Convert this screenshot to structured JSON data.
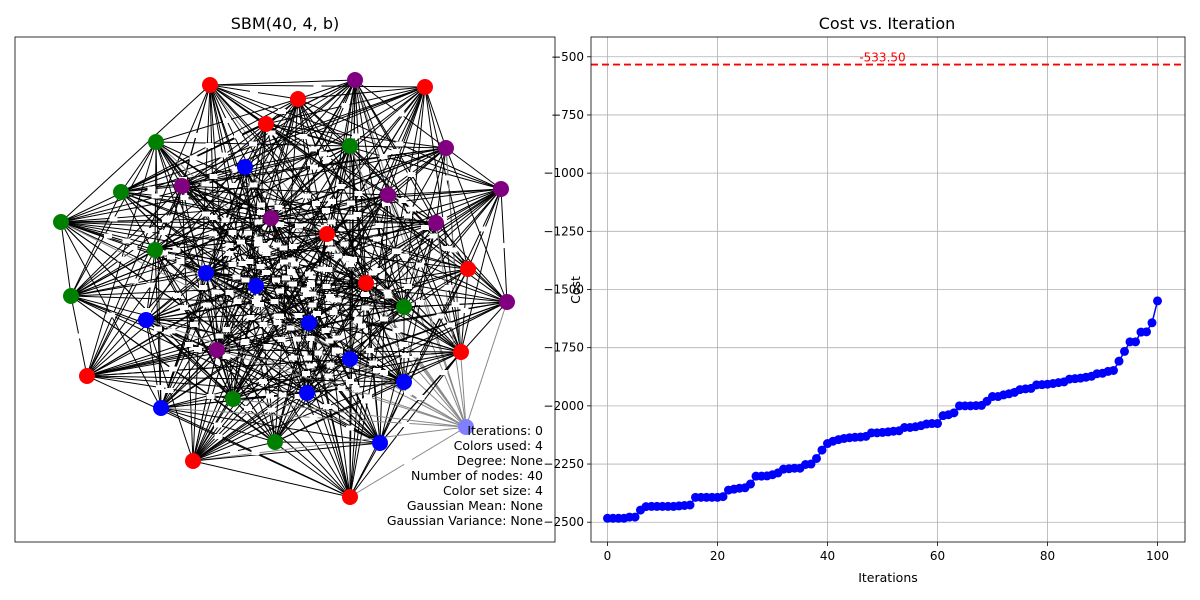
{
  "chart_data": [
    {
      "type": "network",
      "title": "SBM(40, 4, b)",
      "node_count": 40,
      "colors": {
        "red": "#ff0000",
        "green": "#008000",
        "blue": "#0000ff",
        "purple": "#800080",
        "light_blue": "#8080ff"
      },
      "info_lines": [
        "Iterations: 0",
        "Colors used: 4",
        "Degree: None",
        "Number of nodes: 40",
        "Color set size: 4",
        "Gaussian Mean: None",
        "Gaussian Variance: None"
      ]
    },
    {
      "type": "line",
      "title": "Cost vs. Iteration",
      "xlabel": "Iterations",
      "ylabel": "Cost",
      "xlim": [
        -3,
        105
      ],
      "ylim": [
        -2585,
        -415
      ],
      "x_ticks": [
        0,
        20,
        40,
        60,
        80,
        100
      ],
      "y_ticks": [
        -500,
        -750,
        -1000,
        -1250,
        -1500,
        -1750,
        -2000,
        -2250,
        -2500
      ],
      "y_tick_labels": [
        "−500",
        "−750",
        "−1000",
        "−1250",
        "−1500",
        "−1750",
        "−2000",
        "−2250",
        "−2500"
      ],
      "grid": true,
      "line_color": "#0000ff",
      "reference_line": {
        "y": -533.5,
        "label": "-533.50",
        "color": "#ff0000"
      },
      "series": [
        {
          "x": [
            0,
            1,
            2,
            3,
            4,
            5,
            6,
            7,
            8,
            9,
            10,
            11,
            12,
            13,
            14,
            15,
            16,
            17,
            18,
            19,
            20,
            21,
            22,
            23,
            24,
            25,
            26,
            27,
            28,
            29,
            30,
            31,
            32,
            33,
            34,
            35,
            36,
            37,
            38,
            39,
            40,
            41,
            42,
            43,
            44,
            45,
            46,
            47,
            48,
            49,
            50,
            51,
            52,
            53,
            54,
            55,
            56,
            57,
            58,
            59,
            60,
            61,
            62,
            63,
            64,
            65,
            66,
            67,
            68,
            69,
            70,
            71,
            72,
            73,
            74,
            75,
            76,
            77,
            78,
            79,
            80,
            81,
            82,
            83,
            84,
            85,
            86,
            87,
            88,
            89,
            90,
            91,
            92,
            93,
            94,
            95,
            96,
            97,
            98,
            99,
            100
          ],
          "y": [
            -2483,
            -2483,
            -2483,
            -2483,
            -2478,
            -2478,
            -2448,
            -2433,
            -2432,
            -2432,
            -2432,
            -2432,
            -2432,
            -2430,
            -2428,
            -2426,
            -2393,
            -2393,
            -2393,
            -2393,
            -2393,
            -2390,
            -2362,
            -2358,
            -2354,
            -2352,
            -2336,
            -2302,
            -2302,
            -2301,
            -2296,
            -2288,
            -2272,
            -2270,
            -2268,
            -2268,
            -2252,
            -2250,
            -2226,
            -2190,
            -2162,
            -2152,
            -2145,
            -2140,
            -2137,
            -2135,
            -2134,
            -2131,
            -2116,
            -2116,
            -2114,
            -2112,
            -2109,
            -2107,
            -2093,
            -2093,
            -2090,
            -2085,
            -2078,
            -2076,
            -2076,
            -2042,
            -2038,
            -2030,
            -2000,
            -2000,
            -2000,
            -1999,
            -1998,
            -1980,
            -1960,
            -1960,
            -1953,
            -1948,
            -1942,
            -1930,
            -1927,
            -1925,
            -1910,
            -1909,
            -1907,
            -1904,
            -1900,
            -1897,
            -1885,
            -1883,
            -1881,
            -1877,
            -1873,
            -1862,
            -1860,
            -1852,
            -1848,
            -1808,
            -1766,
            -1725,
            -1725,
            -1683,
            -1682,
            -1643,
            -1549
          ]
        }
      ]
    }
  ]
}
